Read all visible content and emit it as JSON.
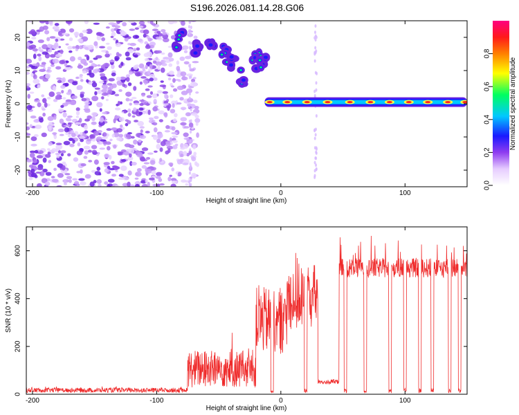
{
  "figure": {
    "title": "S196.2026.081.14.28.G06"
  },
  "chart_data": [
    {
      "type": "heatmap",
      "name": "spectrogram",
      "xlabel": "Height of straight line (km)",
      "ylabel": "Frequency (Hz)",
      "xlim": [
        -205,
        150
      ],
      "ylim": [
        -25,
        25
      ],
      "xticks": [
        -200,
        -100,
        0,
        100
      ],
      "yticks": [
        -20,
        -10,
        0,
        10,
        20
      ],
      "grid": false,
      "colorbar": {
        "label": "Normalized spectral amplitude",
        "range": [
          0,
          1
        ],
        "ticks": [
          0.0,
          0.2,
          0.4,
          0.6,
          0.8
        ],
        "tick_labels": [
          "0.0",
          "0.2",
          "0.4",
          "0.6",
          "0.8"
        ],
        "colormap": [
          "#ffffff",
          "#e6ccff",
          "#8f3cf0",
          "#1a1aff",
          "#00c8ff",
          "#00ff60",
          "#ffff00",
          "#ff8000",
          "#ff1a1a",
          "#ff0080"
        ]
      },
      "features": {
        "noise_region_x": [
          -205,
          -75
        ],
        "descending_trace": {
          "x": [
            -82,
            -68,
            -55,
            -45,
            -40,
            -30,
            -20,
            -15
          ],
          "freq_hz": [
            19,
            16,
            18,
            15,
            12,
            8,
            13,
            13
          ]
        },
        "tone": {
          "x_start": -13,
          "x_end": 150,
          "freq_hz": 0.5
        }
      }
    },
    {
      "type": "line",
      "name": "snr",
      "xlabel": "Height of straight line (km)",
      "ylabel": "SNR (10 * v/v)",
      "xlim": [
        -205,
        150
      ],
      "ylim": [
        0,
        700
      ],
      "xticks": [
        -200,
        -100,
        0,
        100
      ],
      "yticks": [
        0,
        200,
        400,
        600
      ],
      "grid": false,
      "series": [
        {
          "name": "SNR",
          "color": "#ef2b2b",
          "segments": [
            {
              "x": [
                -205,
                -75
              ],
              "level": 15
            },
            {
              "x": [
                -75,
                -20
              ],
              "level": 90
            },
            {
              "x": [
                -20,
                5
              ],
              "level": 280
            },
            {
              "x": [
                5,
                30
              ],
              "level": 380
            },
            {
              "x": [
                30,
                47
              ],
              "level": 50
            },
            {
              "x": [
                47,
                150
              ],
              "level": 520
            }
          ],
          "dropouts_x": [
            -7,
            20,
            52,
            68,
            88,
            100,
            112,
            122,
            136,
            144
          ]
        }
      ]
    }
  ]
}
